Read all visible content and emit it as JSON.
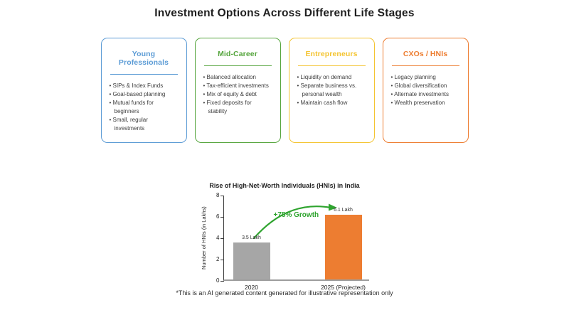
{
  "page": {
    "title": "Investment Options Across Different Life Stages",
    "footnote": "*This is an AI generated content generated for illustrative representation only"
  },
  "cards": [
    {
      "title": "Young Professionals",
      "color": "#5B9BD5",
      "items": [
        "SIPs & Index Funds",
        "Goal-based planning",
        "Mutual funds for beginners",
        "Small, regular investments"
      ]
    },
    {
      "title": "Mid-Career",
      "color": "#56A53E",
      "items": [
        "Balanced allocation",
        "Tax-efficient investments",
        "Mix of equity & debt",
        "Fixed deposits for stability"
      ]
    },
    {
      "title": "Entrepreneurs",
      "color": "#F4C431",
      "items": [
        "Liquidity on demand",
        "Separate business vs. personal wealth",
        "Maintain cash flow"
      ]
    },
    {
      "title": "CXOs / HNIs",
      "color": "#ED7D31",
      "items": [
        "Legacy planning",
        "Global diversification",
        "Alternate investments",
        "Wealth preservation"
      ]
    }
  ],
  "chart_data": {
    "type": "bar",
    "title": "Rise of High-Net-Worth Individuals (HNIs) in India",
    "categories": [
      "2020",
      "2025 (Projected)"
    ],
    "values": [
      3.5,
      6.1
    ],
    "bar_labels": [
      "3.5 Lakh",
      "6.1 Lakh"
    ],
    "bar_colors": [
      "#A6A6A6",
      "#ED7D31"
    ],
    "xlabel": "",
    "ylabel": "Number of HNIs (in Lakhs)",
    "ylim": [
      0,
      8
    ],
    "yticks": [
      0,
      2,
      4,
      6,
      8
    ],
    "grid": false,
    "legend": false,
    "annotation": {
      "text": "+75% Growth",
      "color": "#2FA42F"
    }
  }
}
